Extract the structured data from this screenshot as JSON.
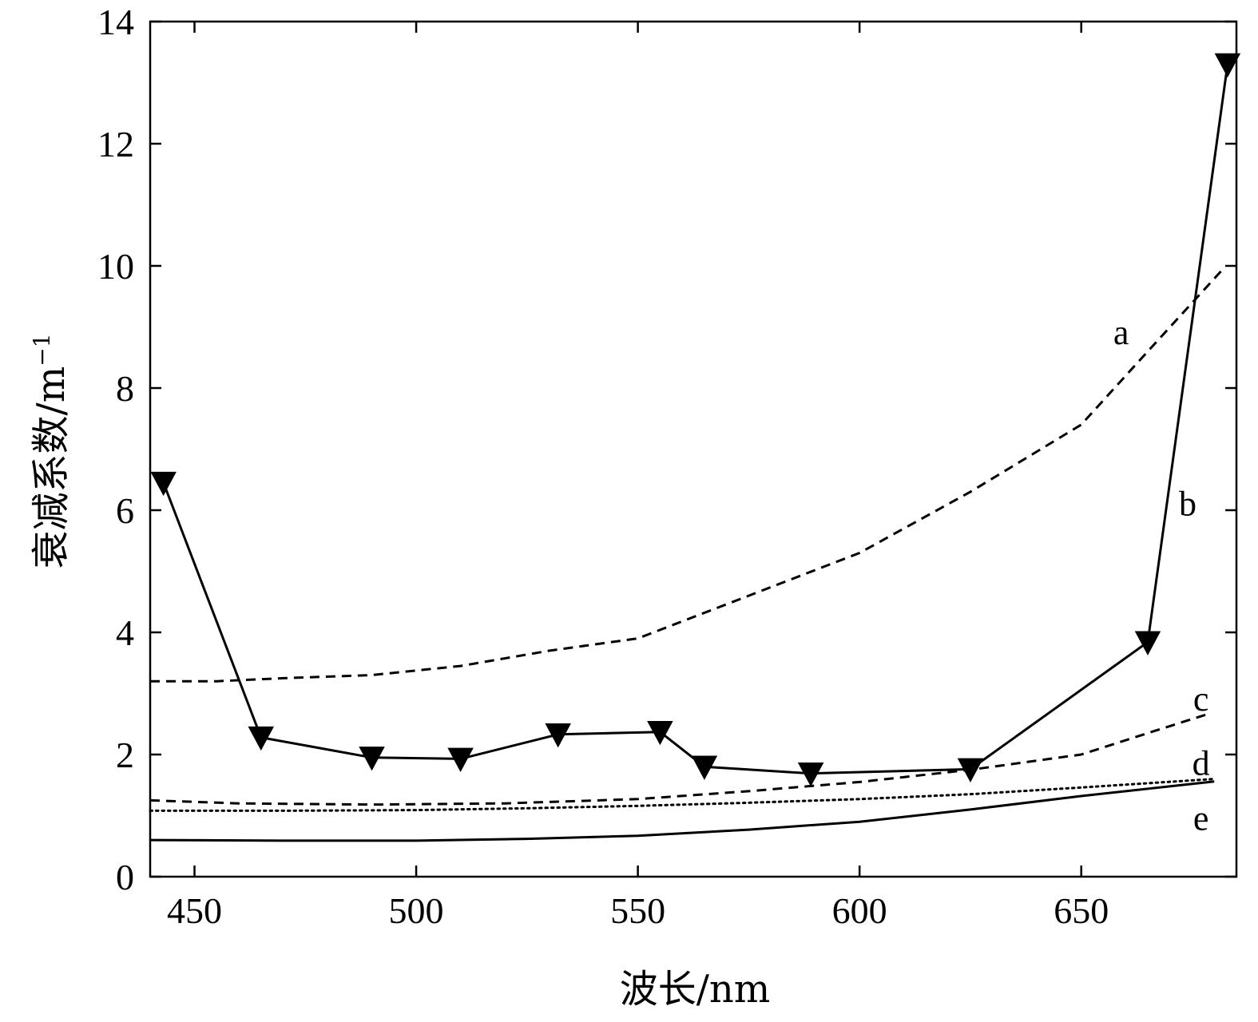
{
  "chart_data": {
    "type": "line",
    "xlabel": "波长/nm",
    "ylabel": "衰减系数/m",
    "ylabel_superscript": "−1",
    "xlim": [
      440,
      685
    ],
    "ylim": [
      0,
      14
    ],
    "xticks": [
      450,
      500,
      550,
      600,
      650
    ],
    "yticks": [
      0,
      2,
      4,
      6,
      8,
      10,
      12,
      14
    ],
    "grid": false,
    "legend": "none",
    "series": [
      {
        "name": "a",
        "style": "dashed",
        "x": [
          440,
          455,
          470,
          490,
          510,
          530,
          550,
          575,
          600,
          625,
          650,
          665,
          682
        ],
        "y": [
          3.2,
          3.2,
          3.25,
          3.3,
          3.45,
          3.7,
          3.9,
          4.6,
          5.3,
          6.3,
          7.4,
          8.6,
          9.95
        ]
      },
      {
        "name": "b",
        "style": "solid-marker",
        "marker": "triangle-down",
        "x": [
          443,
          465,
          490,
          510,
          532,
          555,
          565,
          589,
          625,
          665,
          683
        ],
        "y": [
          6.45,
          2.28,
          1.95,
          1.93,
          2.33,
          2.37,
          1.8,
          1.69,
          1.76,
          3.84,
          13.3
        ]
      },
      {
        "name": "c",
        "style": "dashed",
        "x": [
          440,
          460,
          490,
          520,
          550,
          575,
          600,
          625,
          650,
          665,
          678
        ],
        "y": [
          1.25,
          1.2,
          1.18,
          1.2,
          1.27,
          1.4,
          1.55,
          1.75,
          2.0,
          2.35,
          2.65
        ]
      },
      {
        "name": "d",
        "style": "dotted",
        "x": [
          440,
          470,
          500,
          525,
          550,
          575,
          600,
          625,
          650,
          680
        ],
        "y": [
          1.08,
          1.08,
          1.09,
          1.12,
          1.16,
          1.21,
          1.27,
          1.35,
          1.46,
          1.6
        ]
      },
      {
        "name": "e",
        "style": "solid",
        "x": [
          440,
          470,
          500,
          525,
          550,
          575,
          600,
          625,
          650,
          680
        ],
        "y": [
          0.6,
          0.59,
          0.59,
          0.62,
          0.67,
          0.77,
          0.9,
          1.1,
          1.32,
          1.56
        ]
      }
    ],
    "annotations": [
      {
        "text": "a",
        "x": 659,
        "y": 8.9
      },
      {
        "text": "b",
        "x": 674,
        "y": 6.1
      },
      {
        "text": "c",
        "x": 677,
        "y": 2.9
      },
      {
        "text": "d",
        "x": 677,
        "y": 1.85
      },
      {
        "text": "e",
        "x": 677,
        "y": 0.95
      }
    ]
  }
}
